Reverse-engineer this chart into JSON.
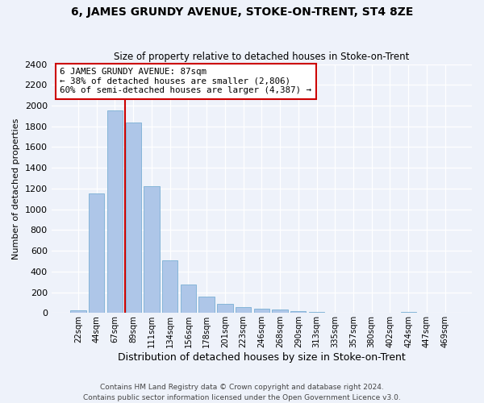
{
  "title": "6, JAMES GRUNDY AVENUE, STOKE-ON-TRENT, ST4 8ZE",
  "subtitle": "Size of property relative to detached houses in Stoke-on-Trent",
  "xlabel": "Distribution of detached houses by size in Stoke-on-Trent",
  "ylabel": "Number of detached properties",
  "bar_labels": [
    "22sqm",
    "44sqm",
    "67sqm",
    "89sqm",
    "111sqm",
    "134sqm",
    "156sqm",
    "178sqm",
    "201sqm",
    "223sqm",
    "246sqm",
    "268sqm",
    "290sqm",
    "313sqm",
    "335sqm",
    "357sqm",
    "380sqm",
    "402sqm",
    "424sqm",
    "447sqm",
    "469sqm"
  ],
  "bar_values": [
    25,
    1150,
    1950,
    1840,
    1220,
    510,
    275,
    155,
    90,
    55,
    40,
    35,
    15,
    10,
    5,
    5,
    2,
    2,
    10,
    2,
    2
  ],
  "bar_color": "#aec6e8",
  "bar_edge_color": "#7aafd4",
  "annotation_line": "6 JAMES GRUNDY AVENUE: 87sqm",
  "annotation_line2": "← 38% of detached houses are smaller (2,806)",
  "annotation_line3": "60% of semi-detached houses are larger (4,387) →",
  "vline_color": "#cc0000",
  "vline_position": 2.57,
  "ylim": [
    0,
    2400
  ],
  "yticks": [
    0,
    200,
    400,
    600,
    800,
    1000,
    1200,
    1400,
    1600,
    1800,
    2000,
    2200,
    2400
  ],
  "footnote1": "Contains HM Land Registry data © Crown copyright and database right 2024.",
  "footnote2": "Contains public sector information licensed under the Open Government Licence v3.0.",
  "background_color": "#eef2fa",
  "plot_bg_color": "#eef2fa"
}
